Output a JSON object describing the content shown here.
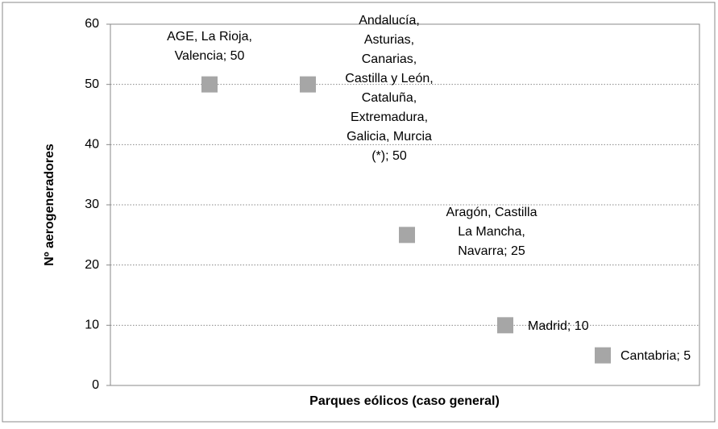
{
  "chart_data": {
    "type": "scatter",
    "x_label": "Parques eólicos (caso general)",
    "y_label": "Nº aerogeneradores",
    "categories": [
      null,
      null,
      null,
      null,
      null
    ],
    "values": [
      50,
      50,
      25,
      10,
      5
    ],
    "value_labels": [
      [
        "AGE, La Rioja,",
        "Valencia; 50"
      ],
      [
        "Andalucía,",
        "Asturias,",
        "Canarias,",
        "Castilla y León,",
        "Cataluña,",
        "Extremadura,",
        "Galicia, Murcia",
        "(*); 50"
      ],
      [
        "Aragón, Castilla",
        "La Mancha,",
        "Navarra; 25"
      ],
      [
        "Madrid; 10"
      ],
      [
        "Cantabria; 5"
      ]
    ],
    "color": "#a6a6a6",
    "ylim": [
      0,
      60
    ],
    "yticks": [
      0,
      10,
      20,
      30,
      40,
      50,
      60
    ],
    "grid": true
  }
}
